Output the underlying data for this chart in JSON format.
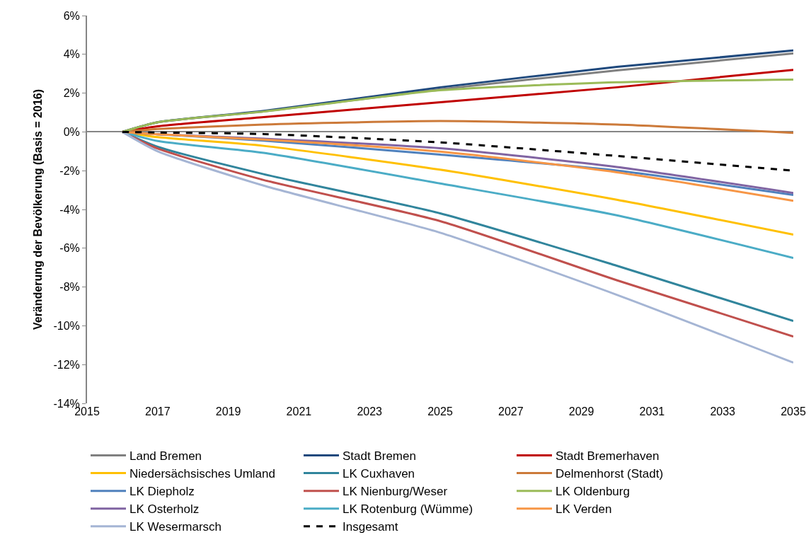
{
  "chart_data": {
    "type": "line",
    "ylabel": "Veränderung der Bevölkerung (Basis = 2016)",
    "x": [
      2016,
      2017,
      2020,
      2025,
      2030,
      2035
    ],
    "xlim": [
      2015,
      2035
    ],
    "xticks": [
      2015,
      2017,
      2019,
      2021,
      2023,
      2025,
      2027,
      2029,
      2031,
      2033,
      2035
    ],
    "ylim": [
      -14,
      6
    ],
    "yticks": [
      {
        "value": -14,
        "label": "-14%"
      },
      {
        "value": -12,
        "label": "-12%"
      },
      {
        "value": -10,
        "label": "-10%"
      },
      {
        "value": -8,
        "label": "-8%"
      },
      {
        "value": -6,
        "label": "-6%"
      },
      {
        "value": -4,
        "label": "-4%"
      },
      {
        "value": -2,
        "label": "-2%"
      },
      {
        "value": 0,
        "label": "0%"
      },
      {
        "value": 2,
        "label": "2%"
      },
      {
        "value": 4,
        "label": "4%"
      },
      {
        "value": 6,
        "label": "6%"
      }
    ],
    "legend": "bottom",
    "marker": "none",
    "series": [
      {
        "name": "Land Bremen",
        "color": "#808080",
        "values": [
          0,
          0.5,
          1.05,
          2.2,
          3.17,
          4.05
        ]
      },
      {
        "name": "Stadt Bremen",
        "color": "#1f497d",
        "values": [
          0,
          0.5,
          1.08,
          2.3,
          3.35,
          4.2
        ]
      },
      {
        "name": "Stadt Bremerhaven",
        "color": "#c00000",
        "values": [
          0,
          0.29,
          0.76,
          1.53,
          2.3,
          3.2
        ]
      },
      {
        "name": "Niedersächsisches Umland",
        "color": "#ffc000",
        "values": [
          0,
          -0.27,
          -0.72,
          -1.95,
          -3.5,
          -5.3
        ]
      },
      {
        "name": "LK Cuxhaven",
        "color": "#31859c",
        "values": [
          0,
          -0.77,
          -2.18,
          -4.2,
          -6.9,
          -9.75
        ]
      },
      {
        "name": "Delmenhorst (Stadt)",
        "color": "#cc7a3a",
        "values": [
          0,
          0.15,
          0.38,
          0.56,
          0.38,
          -0.05
        ]
      },
      {
        "name": "LK Diepholz",
        "color": "#4f81bd",
        "values": [
          0,
          -0.12,
          -0.45,
          -1.17,
          -1.99,
          -3.25
        ]
      },
      {
        "name": "LK Nienburg/Weser",
        "color": "#c0504d",
        "values": [
          0,
          -0.86,
          -2.48,
          -4.6,
          -7.65,
          -10.55
        ]
      },
      {
        "name": "LK Oldenburg",
        "color": "#9bbb59",
        "values": [
          0,
          0.5,
          1.05,
          2.15,
          2.56,
          2.7
        ]
      },
      {
        "name": "LK Osterholz",
        "color": "#8064a2",
        "values": [
          0,
          -0.12,
          -0.35,
          -0.84,
          -1.81,
          -3.15
        ]
      },
      {
        "name": "LK Rotenburg (Wümme)",
        "color": "#4bacc6",
        "values": [
          0,
          -0.47,
          -1.08,
          -2.66,
          -4.3,
          -6.5
        ]
      },
      {
        "name": "LK Verden",
        "color": "#f79646",
        "values": [
          0,
          -0.12,
          -0.4,
          -1.02,
          -2.08,
          -3.55
        ]
      },
      {
        "name": "LK Wesermarsch",
        "color": "#a5b5d4",
        "values": [
          0,
          -1.0,
          -2.77,
          -5.2,
          -8.4,
          -11.9
        ]
      },
      {
        "name": "Insgesamt",
        "color": "#000000",
        "line_style": "dashed",
        "values": [
          0,
          -0.03,
          -0.11,
          -0.54,
          -1.24,
          -2.0
        ]
      }
    ]
  }
}
